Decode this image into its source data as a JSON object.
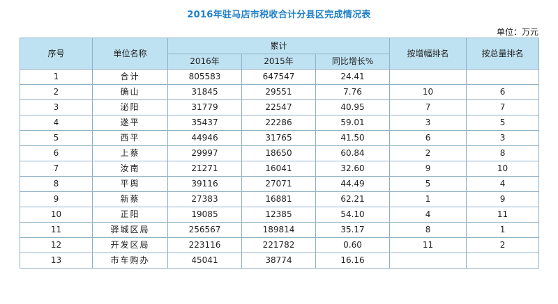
{
  "title": "2016年驻马店市税收合计分县区完成情况表",
  "unit": "单位：万元",
  "table": {
    "headers": {
      "seq": "序号",
      "name": "单位名称",
      "cumulative": "累计",
      "y2016": "2016年",
      "y2015": "2015年",
      "growth": "同比增长%",
      "rank_growth": "按增幅排名",
      "rank_total": "按总量排名"
    },
    "rows": [
      {
        "seq": "1",
        "name": "合计",
        "y2016": "805583",
        "y2015": "647547",
        "growth": "24.41",
        "rank_growth": "",
        "rank_total": ""
      },
      {
        "seq": "2",
        "name": "确山",
        "y2016": "31845",
        "y2015": "29551",
        "growth": "7.76",
        "rank_growth": "10",
        "rank_total": "6"
      },
      {
        "seq": "3",
        "name": "泌阳",
        "y2016": "31779",
        "y2015": "22547",
        "growth": "40.95",
        "rank_growth": "7",
        "rank_total": "7"
      },
      {
        "seq": "4",
        "name": "遂平",
        "y2016": "35437",
        "y2015": "22286",
        "growth": "59.01",
        "rank_growth": "3",
        "rank_total": "5"
      },
      {
        "seq": "5",
        "name": "西平",
        "y2016": "44946",
        "y2015": "31765",
        "growth": "41.50",
        "rank_growth": "6",
        "rank_total": "3"
      },
      {
        "seq": "6",
        "name": "上蔡",
        "y2016": "29997",
        "y2015": "18650",
        "growth": "60.84",
        "rank_growth": "2",
        "rank_total": "8"
      },
      {
        "seq": "7",
        "name": "汝南",
        "y2016": "21271",
        "y2015": "16041",
        "growth": "32.60",
        "rank_growth": "9",
        "rank_total": "10"
      },
      {
        "seq": "8",
        "name": "平舆",
        "y2016": "39116",
        "y2015": "27071",
        "growth": "44.49",
        "rank_growth": "5",
        "rank_total": "4"
      },
      {
        "seq": "9",
        "name": "新蔡",
        "y2016": "27383",
        "y2015": "16881",
        "growth": "62.21",
        "rank_growth": "1",
        "rank_total": "9"
      },
      {
        "seq": "10",
        "name": "正阳",
        "y2016": "19085",
        "y2015": "12385",
        "growth": "54.10",
        "rank_growth": "4",
        "rank_total": "11"
      },
      {
        "seq": "11",
        "name": "驿城区局",
        "y2016": "256567",
        "y2015": "189814",
        "growth": "35.17",
        "rank_growth": "8",
        "rank_total": "1"
      },
      {
        "seq": "12",
        "name": "开发区局",
        "y2016": "223116",
        "y2015": "221782",
        "growth": "0.60",
        "rank_growth": "11",
        "rank_total": "2"
      },
      {
        "seq": "13",
        "name": "市车购办",
        "y2016": "45041",
        "y2015": "38774",
        "growth": "16.16",
        "rank_growth": "",
        "rank_total": ""
      }
    ]
  },
  "colors": {
    "title": "#1f7fc8",
    "header_bg": "#bfe2f2",
    "border": "#8fb0c7"
  }
}
